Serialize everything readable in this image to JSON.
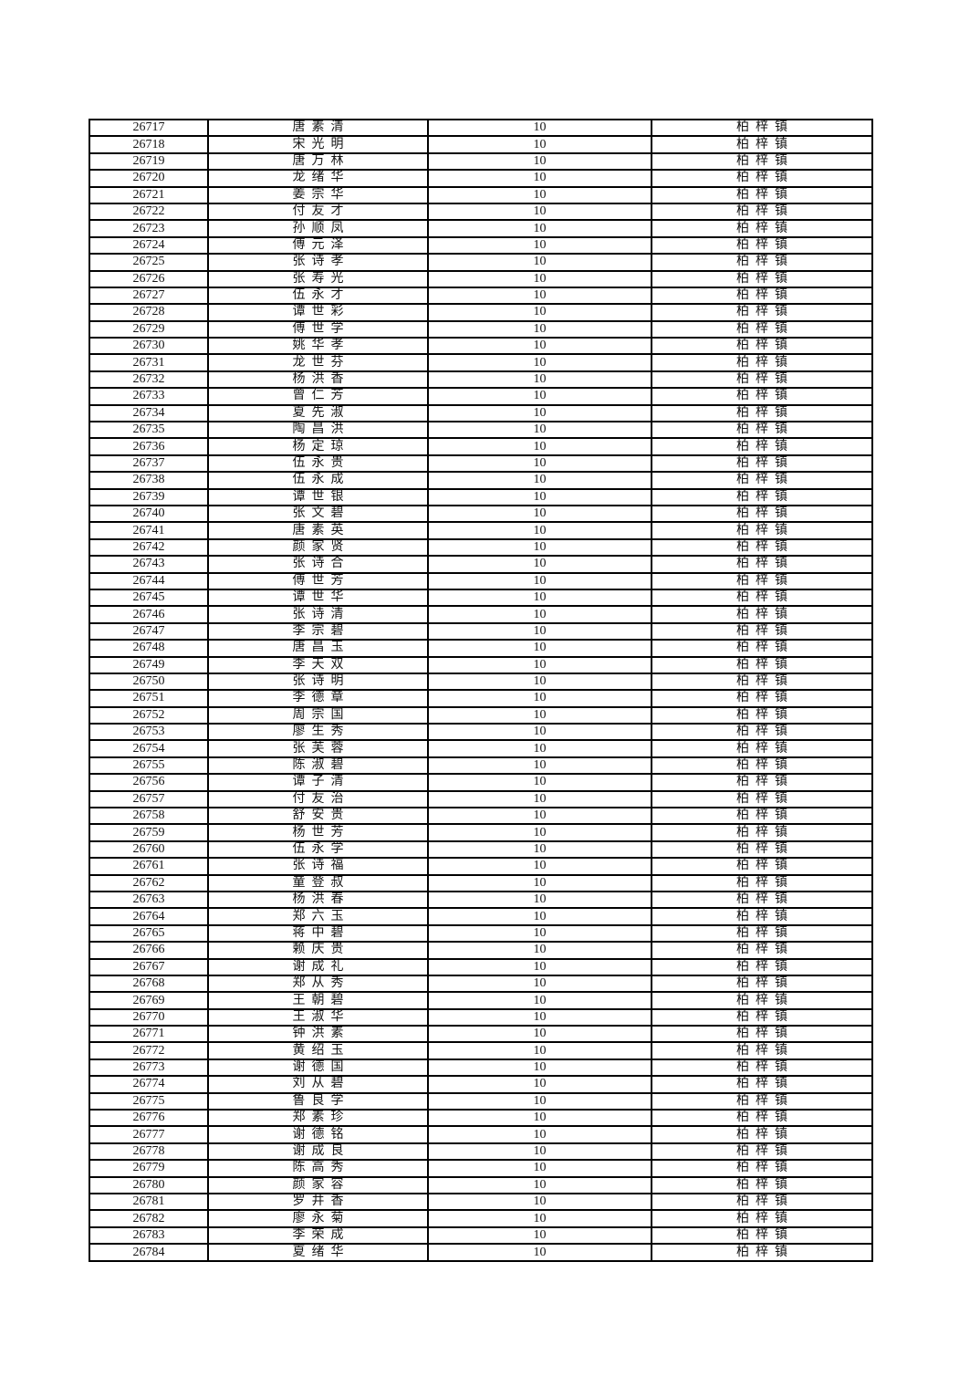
{
  "page": {
    "background": "#ffffff",
    "table_border_color": "#000000",
    "text_color": "#141414"
  },
  "table": {
    "column_keys": [
      "id",
      "name",
      "value",
      "town"
    ],
    "rows": [
      [
        "26717",
        "唐素清",
        "10",
        "柏梓镇"
      ],
      [
        "26718",
        "宋光明",
        "10",
        "柏梓镇"
      ],
      [
        "26719",
        "唐万林",
        "10",
        "柏梓镇"
      ],
      [
        "26720",
        "龙绪华",
        "10",
        "柏梓镇"
      ],
      [
        "26721",
        "姜宗华",
        "10",
        "柏梓镇"
      ],
      [
        "26722",
        "付友才",
        "10",
        "柏梓镇"
      ],
      [
        "26723",
        "孙顺凤",
        "10",
        "柏梓镇"
      ],
      [
        "26724",
        "傅元泽",
        "10",
        "柏梓镇"
      ],
      [
        "26725",
        "张诗孝",
        "10",
        "柏梓镇"
      ],
      [
        "26726",
        "张寿光",
        "10",
        "柏梓镇"
      ],
      [
        "26727",
        "伍永才",
        "10",
        "柏梓镇"
      ],
      [
        "26728",
        "谭世彩",
        "10",
        "柏梓镇"
      ],
      [
        "26729",
        "傅世学",
        "10",
        "柏梓镇"
      ],
      [
        "26730",
        "姚华孝",
        "10",
        "柏梓镇"
      ],
      [
        "26731",
        "龙世芬",
        "10",
        "柏梓镇"
      ],
      [
        "26732",
        "杨洪香",
        "10",
        "柏梓镇"
      ],
      [
        "26733",
        "曾仁芳",
        "10",
        "柏梓镇"
      ],
      [
        "26734",
        "夏先淑",
        "10",
        "柏梓镇"
      ],
      [
        "26735",
        "陶昌洪",
        "10",
        "柏梓镇"
      ],
      [
        "26736",
        "杨定琼",
        "10",
        "柏梓镇"
      ],
      [
        "26737",
        "伍永贵",
        "10",
        "柏梓镇"
      ],
      [
        "26738",
        "伍永成",
        "10",
        "柏梓镇"
      ],
      [
        "26739",
        "谭世银",
        "10",
        "柏梓镇"
      ],
      [
        "26740",
        "张文碧",
        "10",
        "柏梓镇"
      ],
      [
        "26741",
        "唐素英",
        "10",
        "柏梓镇"
      ],
      [
        "26742",
        "颜家贤",
        "10",
        "柏梓镇"
      ],
      [
        "26743",
        "张诗合",
        "10",
        "柏梓镇"
      ],
      [
        "26744",
        "傅世芳",
        "10",
        "柏梓镇"
      ],
      [
        "26745",
        "谭世华",
        "10",
        "柏梓镇"
      ],
      [
        "26746",
        "张诗清",
        "10",
        "柏梓镇"
      ],
      [
        "26747",
        "李宗碧",
        "10",
        "柏梓镇"
      ],
      [
        "26748",
        "唐昌玉",
        "10",
        "柏梓镇"
      ],
      [
        "26749",
        "李天双",
        "10",
        "柏梓镇"
      ],
      [
        "26750",
        "张诗明",
        "10",
        "柏梓镇"
      ],
      [
        "26751",
        "李德章",
        "10",
        "柏梓镇"
      ],
      [
        "26752",
        "周宗国",
        "10",
        "柏梓镇"
      ],
      [
        "26753",
        "廖生秀",
        "10",
        "柏梓镇"
      ],
      [
        "26754",
        "张芙蓉",
        "10",
        "柏梓镇"
      ],
      [
        "26755",
        "陈淑碧",
        "10",
        "柏梓镇"
      ],
      [
        "26756",
        "谭子清",
        "10",
        "柏梓镇"
      ],
      [
        "26757",
        "付友治",
        "10",
        "柏梓镇"
      ],
      [
        "26758",
        "舒安贵",
        "10",
        "柏梓镇"
      ],
      [
        "26759",
        "杨世芳",
        "10",
        "柏梓镇"
      ],
      [
        "26760",
        "伍永学",
        "10",
        "柏梓镇"
      ],
      [
        "26761",
        "张诗福",
        "10",
        "柏梓镇"
      ],
      [
        "26762",
        "童登叔",
        "10",
        "柏梓镇"
      ],
      [
        "26763",
        "杨洪春",
        "10",
        "柏梓镇"
      ],
      [
        "26764",
        "郑六玉",
        "10",
        "柏梓镇"
      ],
      [
        "26765",
        "蒋中碧",
        "10",
        "柏梓镇"
      ],
      [
        "26766",
        "赖庆贵",
        "10",
        "柏梓镇"
      ],
      [
        "26767",
        "谢成礼",
        "10",
        "柏梓镇"
      ],
      [
        "26768",
        "郑从秀",
        "10",
        "柏梓镇"
      ],
      [
        "26769",
        "王朝碧",
        "10",
        "柏梓镇"
      ],
      [
        "26770",
        "王淑华",
        "10",
        "柏梓镇"
      ],
      [
        "26771",
        "钟洪素",
        "10",
        "柏梓镇"
      ],
      [
        "26772",
        "黄绍玉",
        "10",
        "柏梓镇"
      ],
      [
        "26773",
        "谢德国",
        "10",
        "柏梓镇"
      ],
      [
        "26774",
        "刘从碧",
        "10",
        "柏梓镇"
      ],
      [
        "26775",
        "鲁良学",
        "10",
        "柏梓镇"
      ],
      [
        "26776",
        "郑素珍",
        "10",
        "柏梓镇"
      ],
      [
        "26777",
        "谢德铭",
        "10",
        "柏梓镇"
      ],
      [
        "26778",
        "谢成良",
        "10",
        "柏梓镇"
      ],
      [
        "26779",
        "陈高秀",
        "10",
        "柏梓镇"
      ],
      [
        "26780",
        "颜家容",
        "10",
        "柏梓镇"
      ],
      [
        "26781",
        "罗井香",
        "10",
        "柏梓镇"
      ],
      [
        "26782",
        "廖永菊",
        "10",
        "柏梓镇"
      ],
      [
        "26783",
        "李荣成",
        "10",
        "柏梓镇"
      ],
      [
        "26784",
        "夏绪华",
        "10",
        "柏梓镇"
      ]
    ]
  }
}
